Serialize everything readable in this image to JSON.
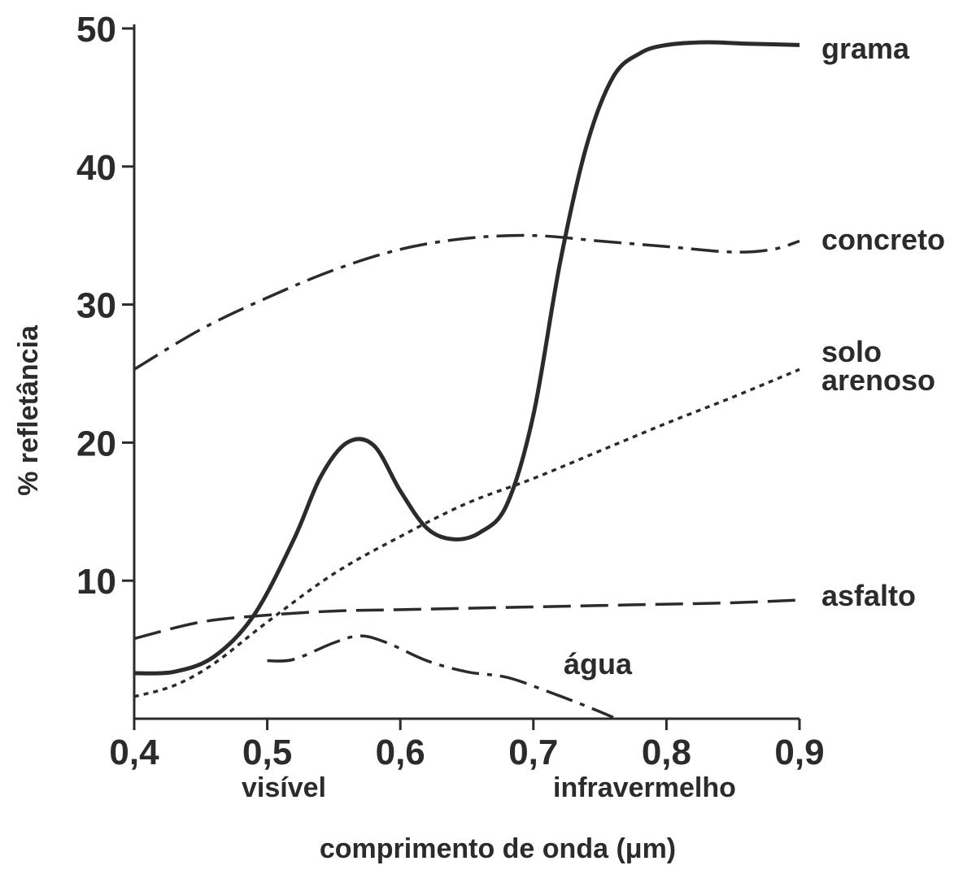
{
  "chart_data": {
    "type": "line",
    "title": "",
    "xlabel": "comprimento de onda (μm)",
    "ylabel": "% refletância",
    "xlim": [
      0.4,
      0.9
    ],
    "ylim": [
      0,
      50
    ],
    "xticks": [
      0.4,
      0.5,
      0.6,
      0.7,
      0.8,
      0.9
    ],
    "xtick_labels": [
      "0,4",
      "0,5",
      "0,6",
      "0,7",
      "0,8",
      "0,9"
    ],
    "yticks": [
      10,
      20,
      30,
      40,
      50
    ],
    "ytick_labels": [
      "10",
      "20",
      "30",
      "40",
      "50"
    ],
    "grid": false,
    "legend": "labels at right end of lines",
    "region_labels": [
      "visível",
      "infravermelho"
    ],
    "series": [
      {
        "name": "grama",
        "style": "solid",
        "points": [
          [
            0.4,
            3.3
          ],
          [
            0.43,
            3.4
          ],
          [
            0.46,
            4.5
          ],
          [
            0.49,
            7.5
          ],
          [
            0.52,
            13
          ],
          [
            0.54,
            17.5
          ],
          [
            0.56,
            20
          ],
          [
            0.58,
            19.8
          ],
          [
            0.6,
            16.5
          ],
          [
            0.62,
            13.8
          ],
          [
            0.64,
            13
          ],
          [
            0.66,
            13.5
          ],
          [
            0.68,
            15.5
          ],
          [
            0.7,
            22
          ],
          [
            0.72,
            33
          ],
          [
            0.74,
            41.5
          ],
          [
            0.76,
            46.5
          ],
          [
            0.78,
            48.2
          ],
          [
            0.8,
            48.8
          ],
          [
            0.83,
            49
          ],
          [
            0.86,
            48.9
          ],
          [
            0.9,
            48.8
          ]
        ]
      },
      {
        "name": "concreto",
        "style": "dashdot",
        "points": [
          [
            0.4,
            25.3
          ],
          [
            0.45,
            28.2
          ],
          [
            0.5,
            30.5
          ],
          [
            0.55,
            32.5
          ],
          [
            0.6,
            34
          ],
          [
            0.65,
            34.8
          ],
          [
            0.7,
            35
          ],
          [
            0.75,
            34.6
          ],
          [
            0.8,
            34.2
          ],
          [
            0.85,
            33.8
          ],
          [
            0.88,
            34
          ],
          [
            0.9,
            34.6
          ]
        ]
      },
      {
        "name": "solo arenoso",
        "style": "dotted",
        "points": [
          [
            0.4,
            1.6
          ],
          [
            0.43,
            2.4
          ],
          [
            0.46,
            4
          ],
          [
            0.5,
            7
          ],
          [
            0.55,
            10.5
          ],
          [
            0.6,
            13.2
          ],
          [
            0.65,
            15.6
          ],
          [
            0.7,
            17.4
          ],
          [
            0.75,
            19.4
          ],
          [
            0.8,
            21.4
          ],
          [
            0.85,
            23.3
          ],
          [
            0.9,
            25.3
          ]
        ]
      },
      {
        "name": "asfalto",
        "style": "dashed",
        "points": [
          [
            0.4,
            5.8
          ],
          [
            0.45,
            7
          ],
          [
            0.5,
            7.5
          ],
          [
            0.55,
            7.8
          ],
          [
            0.6,
            7.9
          ],
          [
            0.65,
            8
          ],
          [
            0.7,
            8.1
          ],
          [
            0.75,
            8.2
          ],
          [
            0.8,
            8.3
          ],
          [
            0.85,
            8.4
          ],
          [
            0.9,
            8.6
          ]
        ]
      },
      {
        "name": "água",
        "style": "dashdot",
        "points": [
          [
            0.5,
            4.2
          ],
          [
            0.52,
            4.3
          ],
          [
            0.55,
            5.5
          ],
          [
            0.57,
            6
          ],
          [
            0.59,
            5.5
          ],
          [
            0.62,
            4.2
          ],
          [
            0.65,
            3.4
          ],
          [
            0.68,
            3
          ],
          [
            0.71,
            2
          ],
          [
            0.74,
            0.9
          ],
          [
            0.76,
            0.1
          ]
        ]
      }
    ]
  }
}
